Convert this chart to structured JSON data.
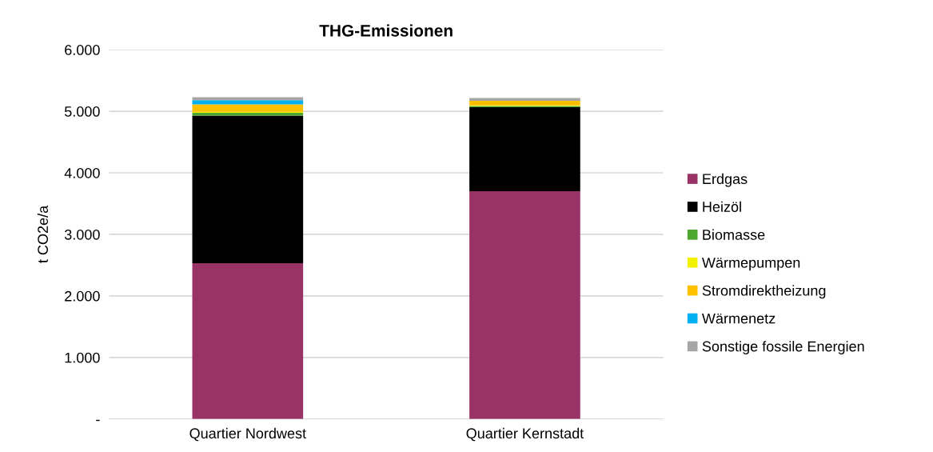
{
  "chart_data": {
    "type": "bar",
    "title": "THG-Emissionen",
    "ylabel": "t CO2e/a",
    "stacked": true,
    "categories": [
      "Quartier Nordwest",
      "Quartier Kernstadt"
    ],
    "series": [
      {
        "name": "Erdgas",
        "color": "#993366",
        "values": [
          2530,
          3700
        ]
      },
      {
        "name": "Heizöl",
        "color": "#000000",
        "values": [
          2400,
          1365
        ]
      },
      {
        "name": "Biomasse",
        "color": "#4ea72e",
        "values": [
          45,
          20
        ]
      },
      {
        "name": "Wärmepumpen",
        "color": "#f2f200",
        "values": [
          15,
          10
        ]
      },
      {
        "name": "Stromdirektheizung",
        "color": "#ffc000",
        "values": [
          120,
          75
        ]
      },
      {
        "name": "Wärmenetz",
        "color": "#00b0f0",
        "values": [
          70,
          0
        ]
      },
      {
        "name": "Sonstige fossile Energien",
        "color": "#a6a6a6",
        "values": [
          50,
          45
        ]
      }
    ],
    "ylim": [
      0,
      6000
    ],
    "yticks": [
      {
        "value": 0,
        "label": "-"
      },
      {
        "value": 1000,
        "label": "1.000"
      },
      {
        "value": 2000,
        "label": "2.000"
      },
      {
        "value": 3000,
        "label": "3.000"
      },
      {
        "value": 4000,
        "label": "4.000"
      },
      {
        "value": 5000,
        "label": "5.000"
      },
      {
        "value": 6000,
        "label": "6.000"
      }
    ],
    "grid": "y",
    "legend": "right"
  }
}
